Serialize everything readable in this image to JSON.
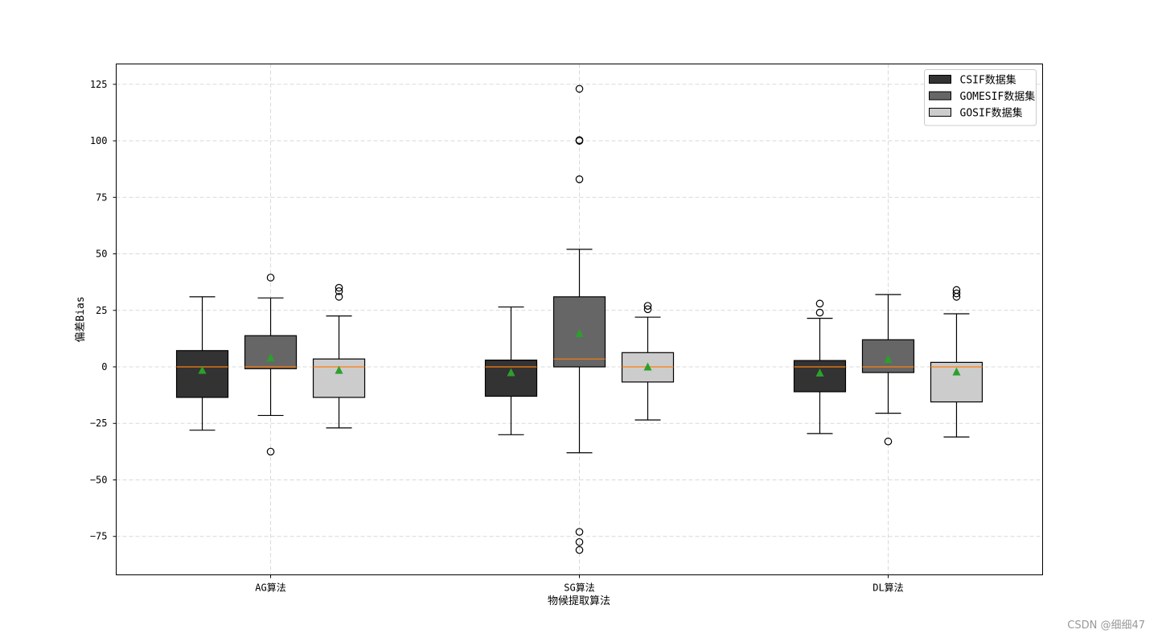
{
  "chart_data": {
    "type": "box",
    "xlabel": "物候提取算法",
    "ylabel": "偏差Bias",
    "categories": [
      "AG算法",
      "SG算法",
      "DL算法"
    ],
    "ylim": [
      -92,
      134
    ],
    "yticks": [
      -75,
      -50,
      -25,
      0,
      25,
      50,
      75,
      100,
      125
    ],
    "grid": true,
    "legend_position": "top-right",
    "series": [
      {
        "name": "CSIF数据集",
        "color": "#333333",
        "boxes": [
          {
            "category": "AG算法",
            "whisker_low": -28,
            "q1": -13.5,
            "median": 0,
            "q3": 7.2,
            "whisker_high": 31,
            "mean": -1.3,
            "outliers": []
          },
          {
            "category": "SG算法",
            "whisker_low": -30,
            "q1": -13,
            "median": 0,
            "q3": 3,
            "whisker_high": 26.5,
            "mean": -2.3,
            "outliers": []
          },
          {
            "category": "DL算法",
            "whisker_low": -29.5,
            "q1": -11,
            "median": 0,
            "q3": 2.8,
            "whisker_high": 21.5,
            "mean": -2.5,
            "outliers": [
              24,
              28
            ]
          }
        ]
      },
      {
        "name": "GOMESIF数据集",
        "color": "#666666",
        "boxes": [
          {
            "category": "AG算法",
            "whisker_low": -21.5,
            "q1": -0.8,
            "median": 0,
            "q3": 13.8,
            "whisker_high": 30.5,
            "mean": 4.2,
            "outliers": [
              -37.5,
              39.5
            ]
          },
          {
            "category": "SG算法",
            "whisker_low": -38,
            "q1": 0,
            "median": 3.5,
            "q3": 31,
            "whisker_high": 52,
            "mean": 15,
            "outliers": [
              -73,
              -77.5,
              -81,
              83,
              100,
              100.3,
              123
            ]
          },
          {
            "category": "DL算法",
            "whisker_low": -20.5,
            "q1": -2.5,
            "median": 0,
            "q3": 12,
            "whisker_high": 32,
            "mean": 3.5,
            "outliers": [
              -33
            ]
          }
        ]
      },
      {
        "name": "GOSIF数据集",
        "color": "#cccccc",
        "boxes": [
          {
            "category": "AG算法",
            "whisker_low": -27,
            "q1": -13.5,
            "median": 0,
            "q3": 3.5,
            "whisker_high": 22.5,
            "mean": -1.3,
            "outliers": [
              31,
              33.5,
              35
            ]
          },
          {
            "category": "SG算法",
            "whisker_low": -23.5,
            "q1": -6.7,
            "median": 0,
            "q3": 6.3,
            "whisker_high": 22,
            "mean": 0.2,
            "outliers": [
              25.5,
              27
            ]
          },
          {
            "category": "DL算法",
            "whisker_low": -31,
            "q1": -15.5,
            "median": 0,
            "q3": 2,
            "whisker_high": 23.5,
            "mean": -2,
            "outliers": [
              31,
              32.5,
              34
            ]
          }
        ]
      }
    ],
    "median_color": "#ff7f0e",
    "mean_color": "#2ca02c"
  },
  "watermark": "CSDN @细细47"
}
